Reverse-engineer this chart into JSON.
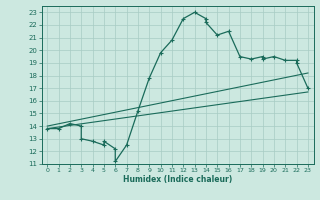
{
  "title": "",
  "xlabel": "Humidex (Indice chaleur)",
  "bg_color": "#cce8e0",
  "line_color": "#1a6b5a",
  "grid_color": "#a8ccc4",
  "xlim": [
    -0.5,
    23.5
  ],
  "ylim": [
    11,
    23.5
  ],
  "xtick_labels": [
    "0",
    "1",
    "2",
    "3",
    "4",
    "5",
    "6",
    "7",
    "8",
    "9",
    "10",
    "11",
    "12",
    "13",
    "14",
    "15",
    "16",
    "17",
    "18",
    "19",
    "20",
    "21",
    "22",
    "23"
  ],
  "xtick_vals": [
    0,
    1,
    2,
    3,
    4,
    5,
    6,
    7,
    8,
    9,
    10,
    11,
    12,
    13,
    14,
    15,
    16,
    17,
    18,
    19,
    20,
    21,
    22,
    23
  ],
  "ytick_vals": [
    11,
    12,
    13,
    14,
    15,
    16,
    17,
    18,
    19,
    20,
    21,
    22,
    23
  ],
  "main_line": [
    [
      0,
      13.8
    ],
    [
      1,
      13.8
    ],
    [
      2,
      14.2
    ],
    [
      3,
      14.0
    ],
    [
      3,
      13.0
    ],
    [
      4,
      12.8
    ],
    [
      5,
      12.5
    ],
    [
      5,
      12.8
    ],
    [
      6,
      12.2
    ],
    [
      6,
      11.2
    ],
    [
      7,
      12.5
    ],
    [
      8,
      15.2
    ],
    [
      9,
      17.8
    ],
    [
      10,
      19.8
    ],
    [
      11,
      20.8
    ],
    [
      12,
      22.5
    ],
    [
      13,
      23.0
    ],
    [
      14,
      22.5
    ],
    [
      14,
      22.2
    ],
    [
      15,
      21.2
    ],
    [
      16,
      21.5
    ],
    [
      17,
      19.5
    ],
    [
      18,
      19.3
    ],
    [
      19,
      19.5
    ],
    [
      19,
      19.3
    ],
    [
      20,
      19.5
    ],
    [
      21,
      19.2
    ],
    [
      22,
      19.2
    ],
    [
      22,
      19.0
    ],
    [
      23,
      17.0
    ]
  ],
  "diag_line1": [
    [
      0,
      13.8
    ],
    [
      23,
      16.7
    ]
  ],
  "diag_line2": [
    [
      0,
      14.0
    ],
    [
      23,
      18.2
    ]
  ]
}
